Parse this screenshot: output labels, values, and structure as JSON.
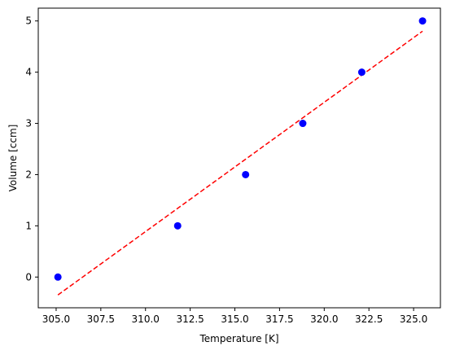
{
  "chart_data": {
    "type": "scatter",
    "xlabel": "Temperature [K]",
    "ylabel": "Volume [ccm]",
    "xlim": [
      304.0,
      326.5
    ],
    "ylim": [
      -0.6,
      5.25
    ],
    "xticks": [
      305.0,
      307.5,
      310.0,
      312.5,
      315.0,
      317.5,
      320.0,
      322.5,
      325.0
    ],
    "xtick_labels": [
      "305.0",
      "307.5",
      "310.0",
      "312.5",
      "315.0",
      "317.5",
      "320.0",
      "322.5",
      "325.0"
    ],
    "yticks": [
      0,
      1,
      2,
      3,
      4,
      5
    ],
    "ytick_labels": [
      "0",
      "1",
      "2",
      "3",
      "4",
      "5"
    ],
    "grid": false,
    "series": [
      {
        "kind": "points",
        "color": "#0000ff",
        "x": [
          305.1,
          311.8,
          315.6,
          318.8,
          322.1,
          325.5
        ],
        "y": [
          0,
          1,
          2,
          3,
          4,
          5
        ]
      },
      {
        "kind": "fit-line",
        "style": "dashed",
        "color": "#ff0000",
        "x": [
          305.1,
          325.5
        ],
        "y": [
          -0.35,
          4.8
        ]
      }
    ]
  }
}
